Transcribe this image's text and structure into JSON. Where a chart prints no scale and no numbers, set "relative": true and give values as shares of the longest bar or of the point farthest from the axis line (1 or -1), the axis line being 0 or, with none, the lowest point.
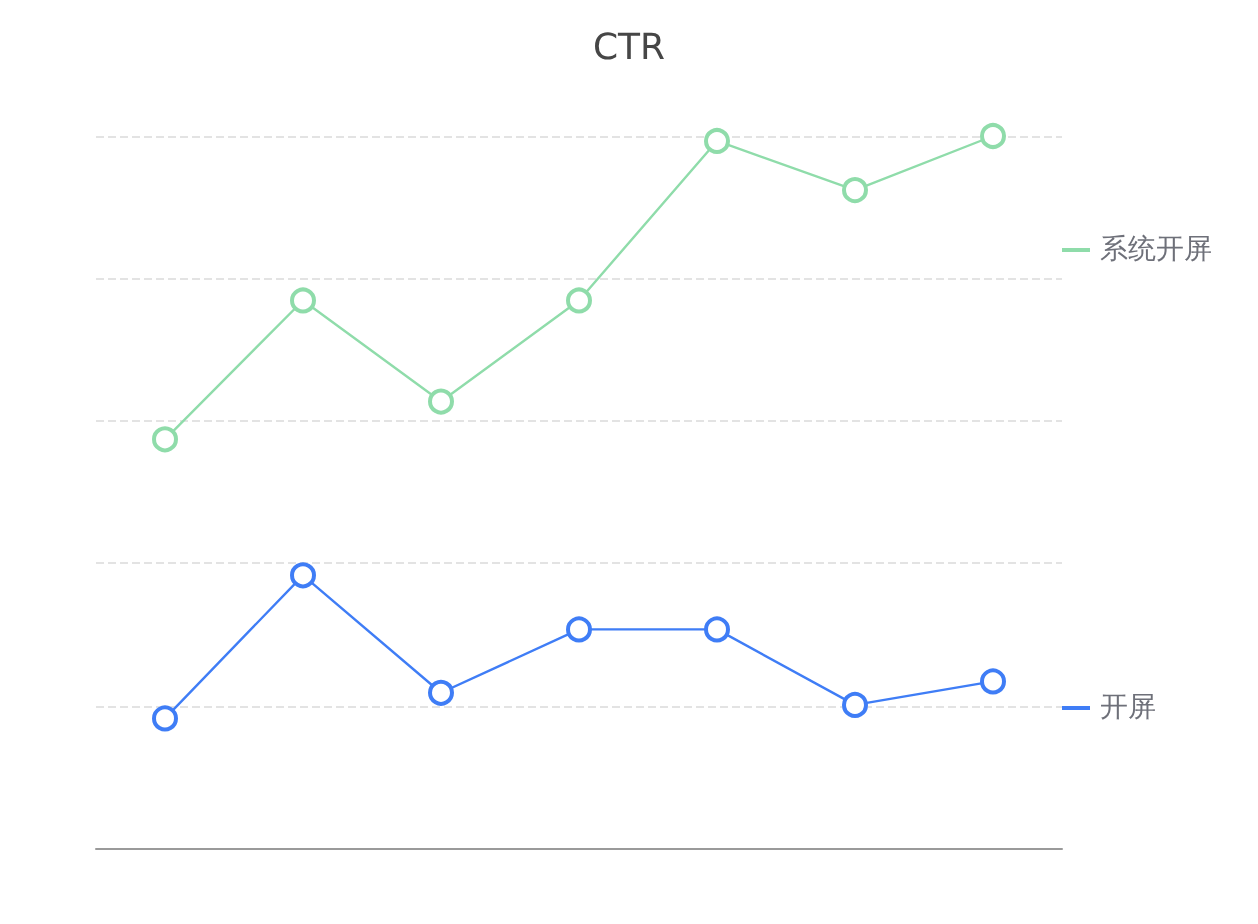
{
  "chart_data": {
    "type": "line",
    "title": "CTR",
    "relative": true,
    "categories": [
      null,
      null,
      null,
      null,
      null,
      null,
      null
    ],
    "series": [
      {
        "name": "系统开屏",
        "color": "#8fdcaa",
        "values": [
          0.574,
          0.769,
          0.627,
          0.769,
          0.993,
          0.924,
          1.0
        ]
      },
      {
        "name": "开屏",
        "color": "#3f7df6",
        "values": [
          0.182,
          0.383,
          0.218,
          0.307,
          0.307,
          0.201,
          0.234
        ]
      }
    ],
    "grid": "y",
    "legend": "right",
    "marker": "circle",
    "line_style": "solid"
  }
}
